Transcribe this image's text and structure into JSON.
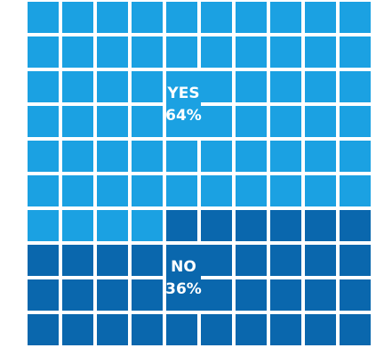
{
  "chart_data": {
    "type": "waffle",
    "categories": [
      "YES",
      "NO"
    ],
    "values": [
      64,
      36
    ],
    "value_labels": [
      "64%",
      "36%"
    ],
    "colors": [
      "#1ba1e2",
      "#0a67ad"
    ]
  }
}
